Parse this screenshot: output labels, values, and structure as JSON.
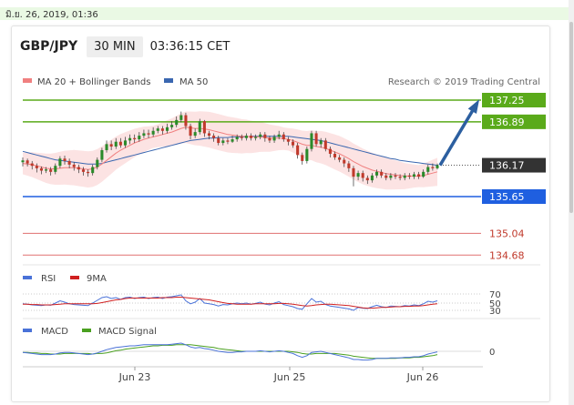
{
  "top_bar": {
    "datetime": "มิ.ย. 26, 2019, 01:36"
  },
  "header": {
    "symbol": "GBP/JPY",
    "timeframe": "30 MIN",
    "time": "03:36:15 CET"
  },
  "legend": {
    "ma20": "MA 20 + Bollinger Bands",
    "ma50": "MA 50",
    "source": "Research © 2019 Trading Central"
  },
  "colors": {
    "resistance": "#5aaa1a",
    "support": "#1f5fe0",
    "price_box": "#333333",
    "target_line": "#e07070",
    "ma20": "#f08080",
    "ma50": "#3a67b0",
    "up_candle": "#2a8a2a",
    "down_candle": "#c0392b",
    "arrow": "#2c5fa0",
    "rsi": "#4a72d8",
    "rsi_ma": "#d02020",
    "macd": "#4a72d8",
    "macd_signal": "#4aa020"
  },
  "levels": [
    {
      "value": 137.25,
      "label": "137.25",
      "kind": "resistance"
    },
    {
      "value": 136.89,
      "label": "136.89",
      "kind": "resistance"
    },
    {
      "value": 136.17,
      "label": "136.17",
      "kind": "price"
    },
    {
      "value": 135.65,
      "label": "135.65",
      "kind": "support"
    },
    {
      "value": 135.04,
      "label": "135.04",
      "kind": "target"
    },
    {
      "value": 134.68,
      "label": "134.68",
      "kind": "target"
    }
  ],
  "chart_data": {
    "type": "candlestick",
    "x_ticks": [
      "Jun 23",
      "Jun 25",
      "Jun 26"
    ],
    "candles": [
      [
        136.22,
        136.25,
        136.3,
        136.15
      ],
      [
        136.25,
        136.2,
        136.28,
        136.15
      ],
      [
        136.2,
        136.16,
        136.24,
        136.1
      ],
      [
        136.16,
        136.12,
        136.2,
        136.05
      ],
      [
        136.12,
        136.08,
        136.15,
        136.02
      ],
      [
        136.08,
        136.1,
        136.14,
        136.04
      ],
      [
        136.1,
        136.06,
        136.14,
        136.0
      ],
      [
        136.06,
        136.16,
        136.2,
        136.02
      ],
      [
        136.16,
        136.28,
        136.32,
        136.12
      ],
      [
        136.28,
        136.24,
        136.33,
        136.18
      ],
      [
        136.24,
        136.18,
        136.28,
        136.12
      ],
      [
        136.18,
        136.14,
        136.22,
        136.08
      ],
      [
        136.14,
        136.1,
        136.18,
        136.04
      ],
      [
        136.1,
        136.06,
        136.14,
        136.0
      ],
      [
        136.06,
        136.04,
        136.1,
        135.98
      ],
      [
        136.04,
        136.14,
        136.18,
        136.0
      ],
      [
        136.14,
        136.26,
        136.3,
        136.1
      ],
      [
        136.26,
        136.42,
        136.46,
        136.22
      ],
      [
        136.42,
        136.52,
        136.58,
        136.38
      ],
      [
        136.52,
        136.48,
        136.58,
        136.42
      ],
      [
        136.48,
        136.56,
        136.62,
        136.44
      ],
      [
        136.56,
        136.5,
        136.62,
        136.46
      ],
      [
        136.5,
        136.58,
        136.64,
        136.46
      ],
      [
        136.58,
        136.62,
        136.68,
        136.52
      ],
      [
        136.62,
        136.6,
        136.68,
        136.54
      ],
      [
        136.6,
        136.66,
        136.72,
        136.56
      ],
      [
        136.66,
        136.7,
        136.76,
        136.62
      ],
      [
        136.7,
        136.68,
        136.76,
        136.62
      ],
      [
        136.68,
        136.74,
        136.8,
        136.64
      ],
      [
        136.74,
        136.78,
        136.82,
        136.7
      ],
      [
        136.78,
        136.74,
        136.82,
        136.68
      ],
      [
        136.74,
        136.8,
        136.86,
        136.7
      ],
      [
        136.8,
        136.84,
        136.9,
        136.76
      ],
      [
        136.84,
        136.92,
        136.98,
        136.8
      ],
      [
        136.92,
        137.0,
        137.06,
        136.88
      ],
      [
        137.0,
        136.82,
        137.04,
        136.76
      ],
      [
        136.82,
        136.66,
        136.86,
        136.6
      ],
      [
        136.66,
        136.72,
        136.78,
        136.62
      ],
      [
        136.72,
        136.9,
        136.94,
        136.68
      ],
      [
        136.9,
        136.7,
        136.92,
        136.64
      ],
      [
        136.7,
        136.66,
        136.74,
        136.6
      ],
      [
        136.66,
        136.62,
        136.7,
        136.56
      ],
      [
        136.62,
        136.54,
        136.66,
        136.5
      ],
      [
        136.54,
        136.58,
        136.62,
        136.5
      ],
      [
        136.58,
        136.56,
        136.62,
        136.52
      ],
      [
        136.56,
        136.6,
        136.66,
        136.54
      ],
      [
        136.6,
        136.64,
        136.68,
        136.56
      ],
      [
        136.64,
        136.62,
        136.68,
        136.58
      ],
      [
        136.62,
        136.66,
        136.7,
        136.58
      ],
      [
        136.66,
        136.62,
        136.7,
        136.58
      ],
      [
        136.62,
        136.64,
        136.68,
        136.58
      ],
      [
        136.64,
        136.68,
        136.72,
        136.6
      ],
      [
        136.68,
        136.62,
        136.72,
        136.56
      ],
      [
        136.62,
        136.58,
        136.66,
        136.54
      ],
      [
        136.58,
        136.64,
        136.68,
        136.54
      ],
      [
        136.64,
        136.68,
        136.74,
        136.6
      ],
      [
        136.68,
        136.6,
        136.72,
        136.56
      ],
      [
        136.6,
        136.56,
        136.64,
        136.5
      ],
      [
        136.56,
        136.5,
        136.6,
        136.46
      ],
      [
        136.5,
        136.34,
        136.54,
        136.28
      ],
      [
        136.34,
        136.24,
        136.38,
        136.18
      ],
      [
        136.24,
        136.44,
        136.48,
        136.2
      ],
      [
        136.44,
        136.7,
        136.74,
        136.4
      ],
      [
        136.7,
        136.52,
        136.74,
        136.48
      ],
      [
        136.52,
        136.58,
        136.62,
        136.46
      ],
      [
        136.58,
        136.44,
        136.62,
        136.4
      ],
      [
        136.44,
        136.36,
        136.48,
        136.3
      ],
      [
        136.36,
        136.3,
        136.4,
        136.26
      ],
      [
        136.3,
        136.26,
        136.34,
        136.22
      ],
      [
        136.26,
        136.2,
        136.3,
        136.14
      ],
      [
        136.2,
        136.12,
        136.24,
        136.06
      ],
      [
        136.12,
        135.98,
        136.16,
        135.82
      ],
      [
        135.98,
        136.04,
        136.08,
        135.92
      ],
      [
        136.04,
        135.96,
        136.08,
        135.9
      ],
      [
        135.96,
        135.92,
        136.0,
        135.86
      ],
      [
        135.92,
        136.0,
        136.04,
        135.88
      ],
      [
        136.0,
        136.06,
        136.1,
        135.96
      ],
      [
        136.06,
        136.0,
        136.1,
        135.96
      ],
      [
        136.0,
        135.96,
        136.04,
        135.92
      ],
      [
        135.96,
        136.0,
        136.04,
        135.92
      ],
      [
        136.0,
        135.98,
        136.04,
        135.94
      ],
      [
        135.98,
        135.96,
        136.02,
        135.92
      ],
      [
        135.96,
        136.0,
        136.04,
        135.92
      ],
      [
        136.0,
        135.98,
        136.04,
        135.94
      ],
      [
        135.98,
        136.02,
        136.06,
        135.94
      ],
      [
        136.02,
        135.98,
        136.06,
        135.94
      ],
      [
        135.98,
        136.06,
        136.1,
        135.96
      ],
      [
        136.06,
        136.14,
        136.18,
        136.02
      ],
      [
        136.14,
        136.12,
        136.2,
        136.08
      ],
      [
        136.12,
        136.17,
        136.2,
        136.1
      ]
    ],
    "ma20": [
      136.2,
      136.19,
      136.18,
      136.16,
      136.14,
      136.12,
      136.11,
      136.11,
      136.12,
      136.13,
      136.13,
      136.13,
      136.12,
      136.11,
      136.1,
      136.11,
      136.14,
      136.19,
      136.25,
      136.31,
      136.37,
      136.42,
      136.46,
      136.5,
      136.54,
      136.57,
      136.6,
      136.62,
      136.64,
      136.66,
      136.68,
      136.7,
      136.72,
      136.75,
      136.78,
      136.8,
      136.79,
      136.78,
      136.78,
      136.77,
      136.76,
      136.74,
      136.72,
      136.7,
      136.68,
      136.67,
      136.66,
      136.65,
      136.65,
      136.64,
      136.64,
      136.64,
      136.63,
      136.62,
      136.62,
      136.62,
      136.61,
      136.6,
      136.58,
      136.55,
      136.52,
      136.5,
      136.5,
      136.48,
      136.47,
      136.45,
      136.42,
      136.39,
      136.36,
      136.32,
      136.28,
      136.23,
      136.19,
      136.15,
      136.12,
      136.09,
      136.07,
      136.05,
      136.03,
      136.02,
      136.01,
      136.0,
      135.99,
      135.99,
      135.99,
      135.99,
      136.0,
      136.02,
      136.04,
      136.06
    ],
    "ma50": [
      136.4,
      136.38,
      136.36,
      136.34,
      136.32,
      136.3,
      136.28,
      136.26,
      136.25,
      136.24,
      136.23,
      136.22,
      136.21,
      136.2,
      136.19,
      136.19,
      136.19,
      136.2,
      136.22,
      136.24,
      136.26,
      136.28,
      136.3,
      136.32,
      136.34,
      136.36,
      136.38,
      136.4,
      136.42,
      136.44,
      136.46,
      136.48,
      136.5,
      136.52,
      136.54,
      136.56,
      136.58,
      136.59,
      136.6,
      136.61,
      136.62,
      136.62,
      136.63,
      136.63,
      136.63,
      136.64,
      136.64,
      136.64,
      136.64,
      136.65,
      136.65,
      136.65,
      136.65,
      136.65,
      136.65,
      136.65,
      136.65,
      136.65,
      136.64,
      136.63,
      136.62,
      136.61,
      136.6,
      136.59,
      136.58,
      136.56,
      136.54,
      136.52,
      136.5,
      136.48,
      136.46,
      136.44,
      136.42,
      136.4,
      136.38,
      136.36,
      136.34,
      136.32,
      136.3,
      136.28,
      136.27,
      136.25,
      136.24,
      136.23,
      136.22,
      136.21,
      136.2,
      136.19,
      136.18,
      136.17
    ],
    "rsi": {
      "label": "RSI",
      "ma_label": "9MA",
      "levels": [
        "70",
        "50",
        "30"
      ],
      "values": [
        48,
        47,
        45,
        44,
        43,
        45,
        44,
        50,
        55,
        52,
        48,
        46,
        45,
        44,
        43,
        50,
        56,
        62,
        64,
        60,
        62,
        58,
        62,
        63,
        60,
        62,
        63,
        60,
        62,
        63,
        60,
        63,
        64,
        66,
        68,
        55,
        48,
        52,
        60,
        50,
        48,
        46,
        42,
        46,
        45,
        48,
        50,
        48,
        50,
        47,
        49,
        52,
        47,
        45,
        50,
        53,
        46,
        43,
        40,
        35,
        33,
        48,
        60,
        52,
        54,
        46,
        42,
        40,
        38,
        36,
        34,
        30,
        38,
        36,
        35,
        40,
        44,
        40,
        38,
        42,
        41,
        40,
        43,
        42,
        45,
        43,
        48,
        54,
        52,
        55
      ],
      "ma": [
        47,
        47,
        46,
        46,
        45,
        45,
        45,
        46,
        47,
        48,
        48,
        48,
        48,
        48,
        48,
        48,
        49,
        51,
        53,
        55,
        57,
        58,
        60,
        61,
        61,
        61,
        61,
        61,
        61,
        61,
        62,
        62,
        62,
        63,
        63,
        62,
        61,
        60,
        59,
        58,
        57,
        55,
        53,
        51,
        49,
        48,
        47,
        47,
        47,
        47,
        48,
        48,
        48,
        48,
        48,
        49,
        49,
        48,
        47,
        45,
        43,
        42,
        43,
        45,
        46,
        47,
        47,
        46,
        45,
        44,
        43,
        41,
        39,
        37,
        36,
        36,
        37,
        38,
        38,
        39,
        40,
        40,
        41,
        41,
        42,
        42,
        43,
        45,
        47,
        48
      ]
    },
    "macd": {
      "label": "MACD",
      "signal_label": "MACD Signal",
      "zero_label": "0",
      "values": [
        -0.02,
        -0.03,
        -0.04,
        -0.05,
        -0.06,
        -0.06,
        -0.06,
        -0.05,
        -0.03,
        -0.02,
        -0.02,
        -0.03,
        -0.04,
        -0.05,
        -0.06,
        -0.05,
        -0.03,
        0.0,
        0.03,
        0.05,
        0.07,
        0.08,
        0.09,
        0.1,
        0.1,
        0.11,
        0.12,
        0.12,
        0.12,
        0.12,
        0.12,
        0.12,
        0.13,
        0.14,
        0.15,
        0.12,
        0.08,
        0.06,
        0.07,
        0.05,
        0.04,
        0.02,
        0.0,
        -0.01,
        -0.02,
        -0.02,
        -0.01,
        -0.01,
        0.0,
        0.0,
        0.0,
        0.01,
        0.0,
        -0.01,
        0.0,
        0.01,
        0.0,
        -0.02,
        -0.04,
        -0.08,
        -0.11,
        -0.08,
        -0.02,
        -0.01,
        0.0,
        -0.02,
        -0.04,
        -0.06,
        -0.08,
        -0.1,
        -0.12,
        -0.15,
        -0.15,
        -0.16,
        -0.16,
        -0.15,
        -0.13,
        -0.13,
        -0.13,
        -0.12,
        -0.12,
        -0.12,
        -0.11,
        -0.11,
        -0.1,
        -0.1,
        -0.08,
        -0.05,
        -0.03,
        -0.01
      ],
      "signal": [
        -0.02,
        -0.02,
        -0.03,
        -0.03,
        -0.04,
        -0.04,
        -0.05,
        -0.05,
        -0.05,
        -0.04,
        -0.04,
        -0.04,
        -0.04,
        -0.04,
        -0.04,
        -0.05,
        -0.04,
        -0.04,
        -0.03,
        -0.01,
        0.01,
        0.02,
        0.04,
        0.05,
        0.06,
        0.07,
        0.08,
        0.09,
        0.1,
        0.1,
        0.11,
        0.11,
        0.11,
        0.12,
        0.12,
        0.12,
        0.12,
        0.11,
        0.1,
        0.09,
        0.08,
        0.07,
        0.05,
        0.04,
        0.03,
        0.02,
        0.01,
        0.0,
        0.0,
        0.0,
        0.0,
        0.0,
        0.0,
        0.0,
        0.0,
        0.0,
        0.0,
        0.0,
        -0.01,
        -0.02,
        -0.04,
        -0.05,
        -0.05,
        -0.04,
        -0.04,
        -0.04,
        -0.04,
        -0.04,
        -0.05,
        -0.06,
        -0.07,
        -0.09,
        -0.1,
        -0.11,
        -0.12,
        -0.13,
        -0.13,
        -0.13,
        -0.13,
        -0.13,
        -0.13,
        -0.12,
        -0.12,
        -0.12,
        -0.11,
        -0.11,
        -0.1,
        -0.09,
        -0.08,
        -0.06
      ]
    },
    "ylim": [
      134.6,
      137.35
    ]
  }
}
